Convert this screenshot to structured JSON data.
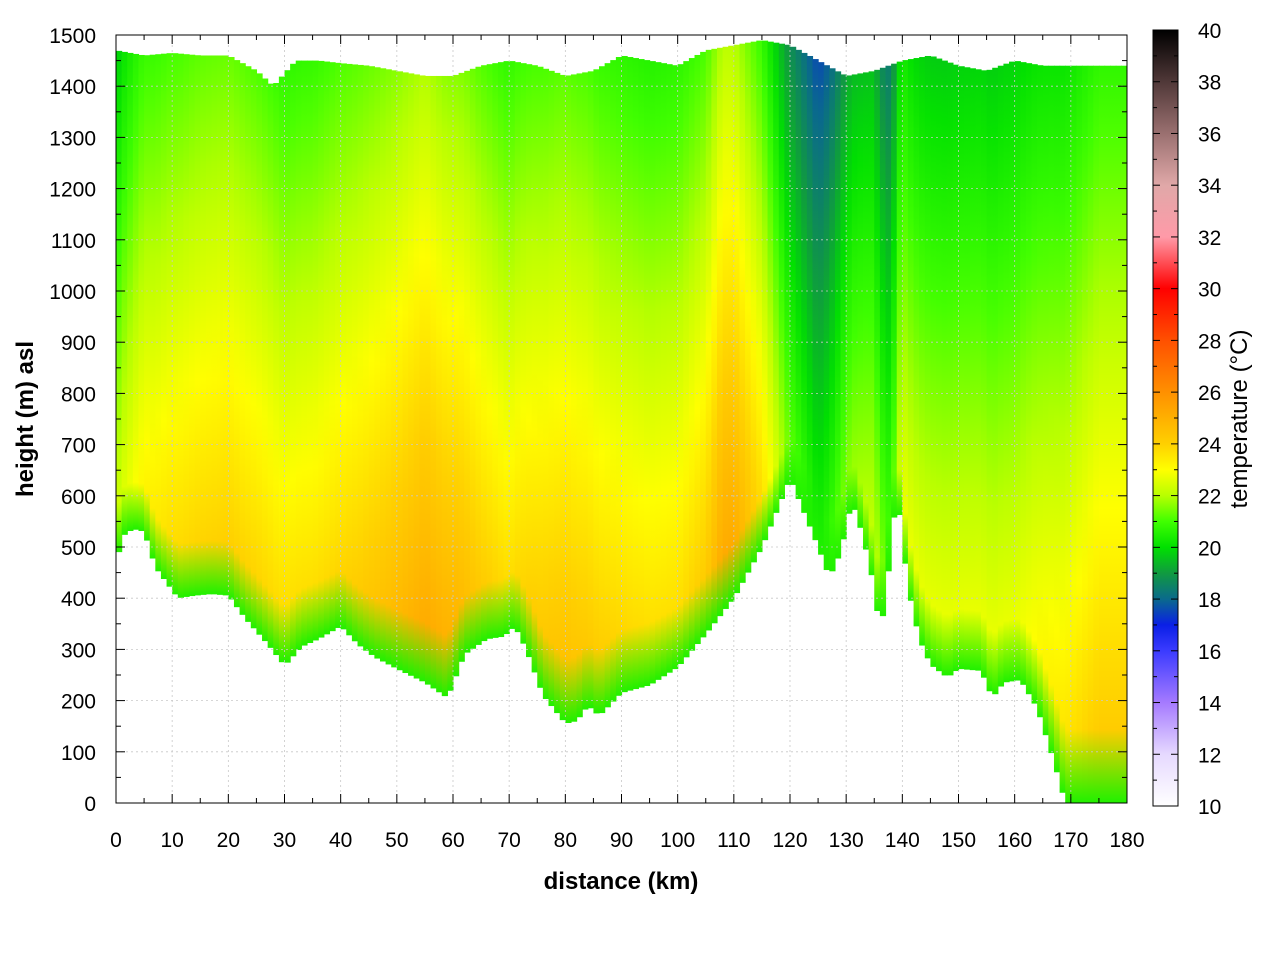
{
  "chart_data": {
    "type": "heatmap",
    "xlabel": "distance (km)",
    "ylabel": "height (m) asl",
    "colorbar_label": "temperature (°C)",
    "xlim": [
      0,
      180
    ],
    "ylim": [
      0,
      1500
    ],
    "clim": [
      10,
      40
    ],
    "x_ticks": [
      0,
      10,
      20,
      30,
      40,
      50,
      60,
      70,
      80,
      90,
      100,
      110,
      120,
      130,
      140,
      150,
      160,
      170,
      180
    ],
    "y_ticks": [
      0,
      100,
      200,
      300,
      400,
      500,
      600,
      700,
      800,
      900,
      1000,
      1100,
      1200,
      1300,
      1400,
      1500
    ],
    "colorbar_ticks": [
      10,
      12,
      14,
      16,
      18,
      20,
      22,
      24,
      26,
      28,
      30,
      32,
      34,
      36,
      38,
      40
    ],
    "grid": true,
    "colormap": [
      {
        "t": 10,
        "color": "#ffffff"
      },
      {
        "t": 12,
        "color": "#e6d9ff"
      },
      {
        "t": 14,
        "color": "#a57aff"
      },
      {
        "t": 16,
        "color": "#3b3bff"
      },
      {
        "t": 17,
        "color": "#0a1fe6"
      },
      {
        "t": 18,
        "color": "#0a6a8c"
      },
      {
        "t": 19,
        "color": "#109a40"
      },
      {
        "t": 20,
        "color": "#00e000"
      },
      {
        "t": 21,
        "color": "#40ff00"
      },
      {
        "t": 22,
        "color": "#b8ff00"
      },
      {
        "t": 23,
        "color": "#ffff00"
      },
      {
        "t": 24,
        "color": "#ffd000"
      },
      {
        "t": 26,
        "color": "#ff9000"
      },
      {
        "t": 28,
        "color": "#ff5000"
      },
      {
        "t": 30,
        "color": "#ff0000"
      },
      {
        "t": 32,
        "color": "#ff9aa8"
      },
      {
        "t": 34,
        "color": "#e0a8a8"
      },
      {
        "t": 36,
        "color": "#9a7070"
      },
      {
        "t": 38,
        "color": "#503838"
      },
      {
        "t": 40,
        "color": "#000000"
      }
    ],
    "terrain": [
      [
        0,
        460
      ],
      [
        1,
        520
      ],
      [
        3,
        535
      ],
      [
        5,
        530
      ],
      [
        7,
        460
      ],
      [
        9,
        430
      ],
      [
        11,
        400
      ],
      [
        14,
        405
      ],
      [
        17,
        408
      ],
      [
        20,
        405
      ],
      [
        23,
        360
      ],
      [
        27,
        310
      ],
      [
        30,
        268
      ],
      [
        33,
        305
      ],
      [
        36,
        320
      ],
      [
        40,
        345
      ],
      [
        43,
        310
      ],
      [
        46,
        285
      ],
      [
        50,
        262
      ],
      [
        55,
        235
      ],
      [
        59,
        205
      ],
      [
        62,
        290
      ],
      [
        66,
        320
      ],
      [
        69,
        325
      ],
      [
        71,
        345
      ],
      [
        73,
        300
      ],
      [
        76,
        210
      ],
      [
        80,
        155
      ],
      [
        82,
        160
      ],
      [
        84,
        190
      ],
      [
        86,
        170
      ],
      [
        90,
        215
      ],
      [
        95,
        230
      ],
      [
        100,
        265
      ],
      [
        105,
        330
      ],
      [
        110,
        400
      ],
      [
        115,
        500
      ],
      [
        118,
        580
      ],
      [
        120,
        635
      ],
      [
        122,
        580
      ],
      [
        125,
        500
      ],
      [
        127,
        440
      ],
      [
        129,
        490
      ],
      [
        131,
        590
      ],
      [
        133,
        520
      ],
      [
        135,
        420
      ],
      [
        136,
        330
      ],
      [
        137,
        400
      ],
      [
        139,
        610
      ],
      [
        141,
        420
      ],
      [
        143,
        320
      ],
      [
        145,
        270
      ],
      [
        148,
        245
      ],
      [
        150,
        262
      ],
      [
        154,
        258
      ],
      [
        156,
        205
      ],
      [
        158,
        235
      ],
      [
        161,
        240
      ],
      [
        164,
        185
      ],
      [
        167,
        80
      ],
      [
        169,
        0
      ],
      [
        180,
        0
      ]
    ],
    "top_edge": [
      [
        0,
        1470
      ],
      [
        5,
        1460
      ],
      [
        10,
        1465
      ],
      [
        15,
        1460
      ],
      [
        20,
        1460
      ],
      [
        25,
        1430
      ],
      [
        28,
        1400
      ],
      [
        32,
        1450
      ],
      [
        36,
        1450
      ],
      [
        40,
        1445
      ],
      [
        45,
        1440
      ],
      [
        50,
        1430
      ],
      [
        55,
        1420
      ],
      [
        60,
        1420
      ],
      [
        65,
        1440
      ],
      [
        70,
        1450
      ],
      [
        75,
        1440
      ],
      [
        80,
        1420
      ],
      [
        85,
        1430
      ],
      [
        90,
        1460
      ],
      [
        95,
        1450
      ],
      [
        100,
        1440
      ],
      [
        105,
        1470
      ],
      [
        110,
        1480
      ],
      [
        115,
        1490
      ],
      [
        120,
        1480
      ],
      [
        125,
        1450
      ],
      [
        130,
        1420
      ],
      [
        135,
        1430
      ],
      [
        140,
        1450
      ],
      [
        145,
        1460
      ],
      [
        150,
        1440
      ],
      [
        155,
        1430
      ],
      [
        160,
        1450
      ],
      [
        165,
        1440
      ],
      [
        170,
        1440
      ],
      [
        180,
        1440
      ]
    ],
    "surface_temperature": [
      [
        0,
        22.5
      ],
      [
        5,
        23.5
      ],
      [
        10,
        24.0
      ],
      [
        15,
        24.2
      ],
      [
        20,
        24.3
      ],
      [
        25,
        24.2
      ],
      [
        30,
        24.0
      ],
      [
        35,
        24.0
      ],
      [
        40,
        24.2
      ],
      [
        45,
        24.6
      ],
      [
        50,
        25.0
      ],
      [
        55,
        25.5
      ],
      [
        60,
        25.2
      ],
      [
        65,
        24.5
      ],
      [
        70,
        24.0
      ],
      [
        75,
        24.5
      ],
      [
        80,
        24.8
      ],
      [
        85,
        24.5
      ],
      [
        90,
        24.2
      ],
      [
        95,
        24.0
      ],
      [
        100,
        24.0
      ],
      [
        105,
        24.5
      ],
      [
        108,
        25.5
      ],
      [
        110,
        25.5
      ],
      [
        115,
        24.0
      ],
      [
        120,
        21.5
      ],
      [
        125,
        20.5
      ],
      [
        130,
        21.8
      ],
      [
        135,
        22.5
      ],
      [
        138,
        21.0
      ],
      [
        140,
        23.0
      ],
      [
        145,
        23.0
      ],
      [
        150,
        23.0
      ],
      [
        155,
        23.0
      ],
      [
        160,
        23.0
      ],
      [
        165,
        23.5
      ],
      [
        170,
        24.0
      ],
      [
        175,
        24.5
      ],
      [
        180,
        24.5
      ]
    ],
    "lapse_rate_c_per_100m": [
      [
        0,
        0.28
      ],
      [
        20,
        0.28
      ],
      [
        40,
        0.28
      ],
      [
        60,
        0.3
      ],
      [
        80,
        0.28
      ],
      [
        100,
        0.28
      ],
      [
        110,
        0.32
      ],
      [
        120,
        0.32
      ],
      [
        140,
        0.28
      ],
      [
        160,
        0.26
      ],
      [
        180,
        0.26
      ]
    ],
    "ground_layer_temperature": 20.5
  }
}
